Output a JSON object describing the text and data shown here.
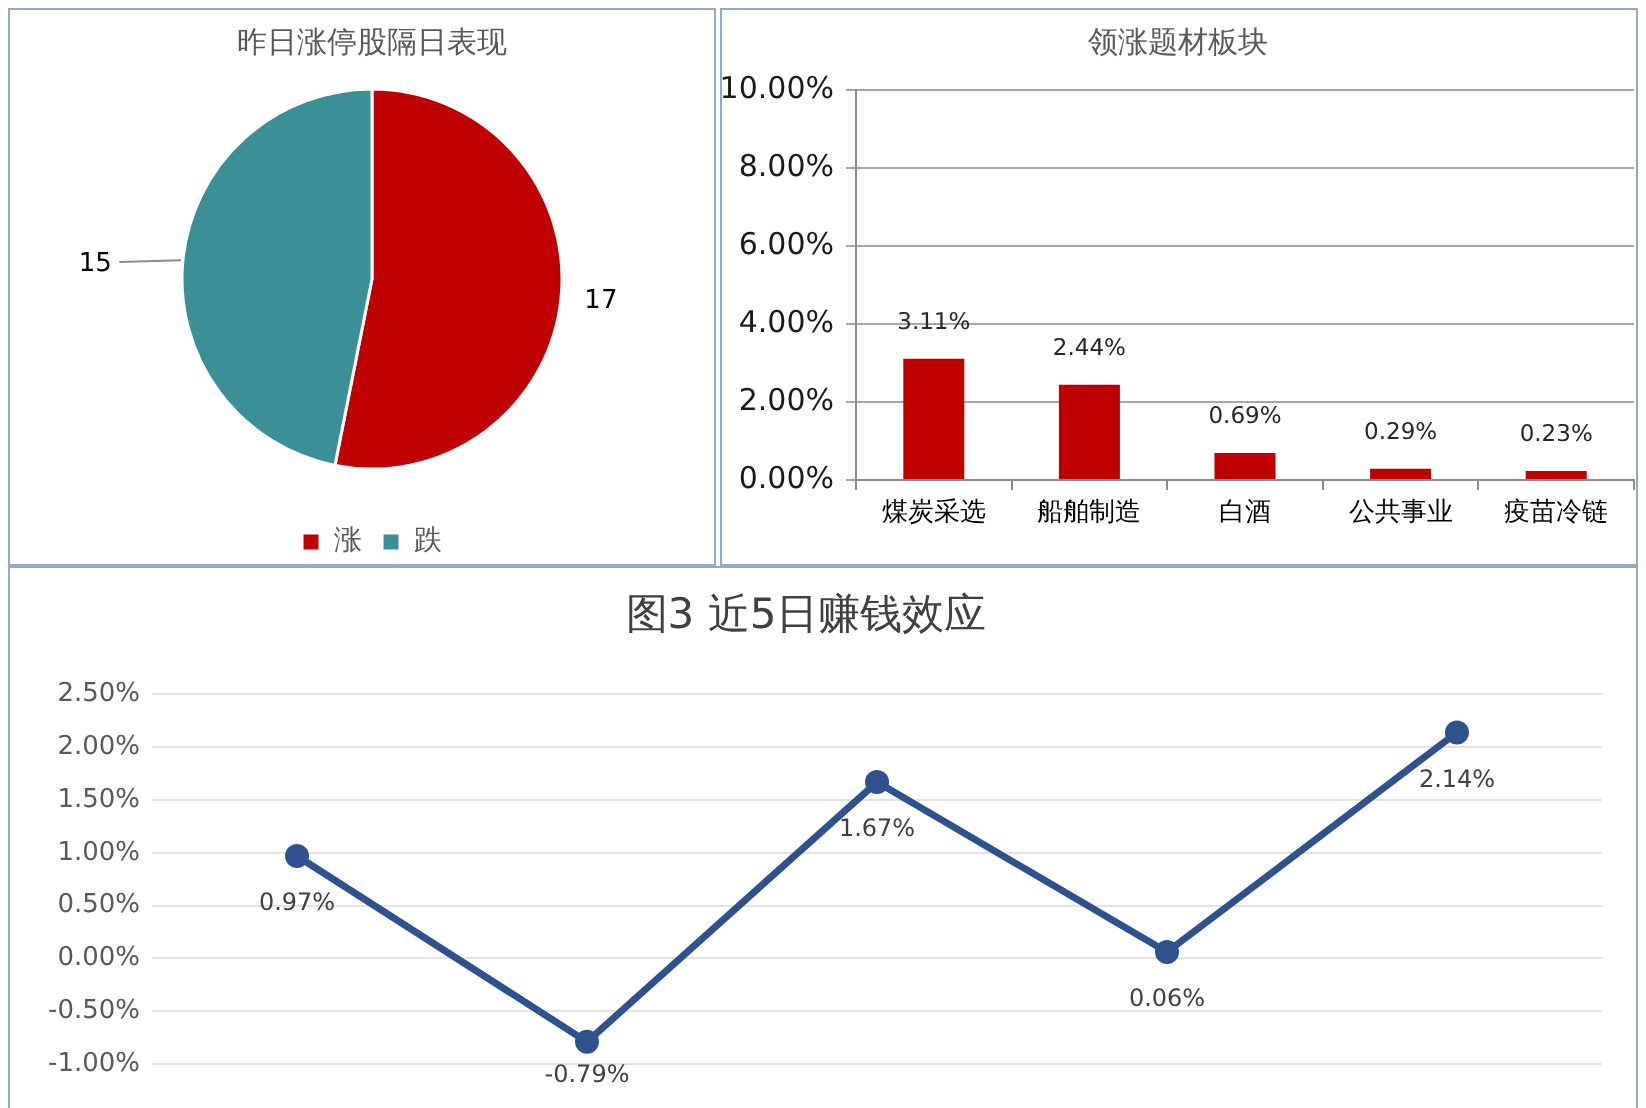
{
  "chart_data": [
    {
      "type": "pie",
      "title": "昨日涨停股隔日表现",
      "categories": [
        "涨",
        "跌"
      ],
      "values": [
        17,
        15
      ],
      "colors": [
        "#c00000",
        "#3b8f96"
      ],
      "data_labels": true,
      "legend": "bottom"
    },
    {
      "type": "bar",
      "title": "领涨题材板块",
      "categories": [
        "煤炭采选",
        "船舶制造",
        "白酒",
        "公共事业",
        "疫苗冷链"
      ],
      "values": [
        3.11,
        2.44,
        0.69,
        0.29,
        0.23
      ],
      "color": "#c00000",
      "value_labels": [
        "3.11%",
        "2.44%",
        "0.69%",
        "0.29%",
        "0.23%"
      ],
      "ylim": [
        0,
        10
      ],
      "yticks": [
        {
          "value": 0,
          "label": "0.00%"
        },
        {
          "value": 2,
          "label": "2.00%"
        },
        {
          "value": 4,
          "label": "4.00%"
        },
        {
          "value": 6,
          "label": "6.00%"
        },
        {
          "value": 8,
          "label": "8.00%"
        },
        {
          "value": 10,
          "label": "10.00%"
        }
      ],
      "grid": "y"
    },
    {
      "type": "line",
      "title": "图3 近5日赚钱效应",
      "categories": [
        null,
        null,
        null,
        null,
        null
      ],
      "values": [
        0.97,
        -0.79,
        1.67,
        0.06,
        2.14
      ],
      "color": "#2f528f",
      "value_labels": [
        "0.97%",
        "-0.79%",
        "1.67%",
        "0.06%",
        "2.14%"
      ],
      "ylim": [
        -1,
        2.5
      ],
      "yticks": [
        {
          "value": -1,
          "label": "-1.00%"
        },
        {
          "value": -0.5,
          "label": "-0.50%"
        },
        {
          "value": 0,
          "label": "0.00%"
        },
        {
          "value": 0.5,
          "label": "0.50%"
        },
        {
          "value": 1,
          "label": "1.00%"
        },
        {
          "value": 1.5,
          "label": "1.50%"
        },
        {
          "value": 2,
          "label": "2.00%"
        },
        {
          "value": 2.5,
          "label": "2.50%"
        }
      ],
      "grid": "y",
      "marker": "circle"
    }
  ]
}
